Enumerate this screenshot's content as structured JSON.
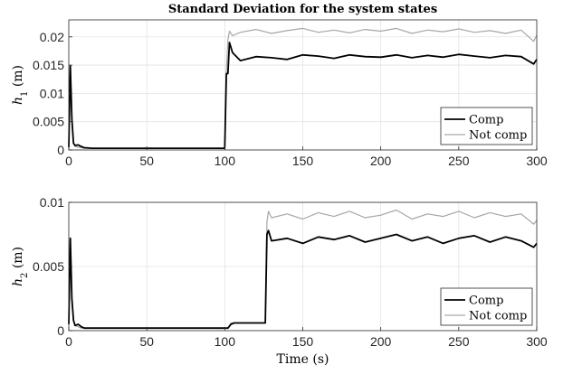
{
  "chart_data": [
    {
      "type": "line",
      "title": "Standard Deviation for the system states",
      "xlabel": "",
      "ylabel": "h_1 (m)",
      "xlim": [
        0,
        300
      ],
      "ylim": [
        0,
        0.023
      ],
      "xticks": [
        0,
        50,
        100,
        150,
        200,
        250,
        300
      ],
      "xtick_labels": [
        "0",
        "50",
        "100",
        "150",
        "200",
        "250",
        "300"
      ],
      "yticks": [
        0,
        0.005,
        0.01,
        0.015,
        0.02
      ],
      "ytick_labels": [
        "0",
        "0.005",
        "0.01",
        "0.015",
        "0.02"
      ],
      "grid": true,
      "legend": "bottom-right",
      "series": [
        {
          "name": "Comp",
          "color": "#000000",
          "x": [
            0,
            1,
            2,
            3,
            4,
            6,
            8,
            10,
            15,
            25,
            50,
            75,
            100,
            101,
            102,
            103,
            105,
            110,
            120,
            130,
            140,
            150,
            160,
            170,
            180,
            190,
            200,
            210,
            220,
            230,
            240,
            250,
            260,
            270,
            280,
            290,
            298,
            300
          ],
          "y": [
            0.0005,
            0.0148,
            0.0055,
            0.0012,
            0.0008,
            0.0009,
            0.0006,
            0.0004,
            0.0003,
            0.0003,
            0.0003,
            0.0003,
            0.0003,
            0.0135,
            0.0135,
            0.019,
            0.0172,
            0.0158,
            0.0165,
            0.0163,
            0.016,
            0.0168,
            0.0166,
            0.0162,
            0.0168,
            0.0165,
            0.0164,
            0.0168,
            0.0163,
            0.0167,
            0.0164,
            0.0169,
            0.0166,
            0.0163,
            0.0167,
            0.0165,
            0.0152,
            0.016
          ]
        },
        {
          "name": "Not comp",
          "color": "#a6a6a6",
          "x": [
            0,
            1,
            2,
            3,
            4,
            6,
            8,
            10,
            15,
            25,
            50,
            75,
            100,
            101,
            102,
            103,
            105,
            110,
            120,
            130,
            140,
            150,
            160,
            170,
            180,
            190,
            200,
            210,
            220,
            230,
            240,
            250,
            260,
            270,
            280,
            290,
            298,
            300
          ],
          "y": [
            0.0005,
            0.0148,
            0.0055,
            0.0012,
            0.0006,
            0.0005,
            0.0004,
            0.0003,
            0.0003,
            0.0003,
            0.0003,
            0.0003,
            0.0003,
            0.014,
            0.0195,
            0.021,
            0.0202,
            0.0208,
            0.0213,
            0.0206,
            0.0211,
            0.0215,
            0.0208,
            0.0212,
            0.0207,
            0.0213,
            0.021,
            0.0215,
            0.0206,
            0.0212,
            0.0209,
            0.0214,
            0.0208,
            0.0211,
            0.0206,
            0.0212,
            0.0192,
            0.0203
          ]
        }
      ]
    },
    {
      "type": "line",
      "title": "",
      "xlabel": "Time (s)",
      "ylabel": "h_2 (m)",
      "xlim": [
        0,
        300
      ],
      "ylim": [
        0,
        0.01
      ],
      "xticks": [
        0,
        50,
        100,
        150,
        200,
        250,
        300
      ],
      "xtick_labels": [
        "0",
        "50",
        "100",
        "150",
        "200",
        "250",
        "300"
      ],
      "yticks": [
        0,
        0.005,
        0.01
      ],
      "ytick_labels": [
        "0",
        "0.005",
        "0.01"
      ],
      "grid": true,
      "legend": "bottom-right",
      "series": [
        {
          "name": "Comp",
          "color": "#000000",
          "x": [
            0,
            1,
            2,
            3,
            4,
            6,
            8,
            10,
            15,
            25,
            50,
            75,
            100,
            102,
            104,
            106,
            110,
            115,
            120,
            125,
            126,
            127,
            128,
            130,
            140,
            150,
            160,
            170,
            180,
            190,
            200,
            210,
            220,
            230,
            240,
            250,
            260,
            270,
            280,
            290,
            298,
            300
          ],
          "y": [
            0.0005,
            0.0072,
            0.0025,
            0.0008,
            0.0004,
            0.0005,
            0.0003,
            0.0002,
            0.0002,
            0.0002,
            0.0002,
            0.0002,
            0.0002,
            0.0002,
            0.0005,
            0.0006,
            0.0006,
            0.0006,
            0.0006,
            0.0006,
            0.0006,
            0.0075,
            0.0078,
            0.007,
            0.0072,
            0.0068,
            0.0073,
            0.0071,
            0.0074,
            0.0069,
            0.0072,
            0.0075,
            0.007,
            0.0073,
            0.0068,
            0.0072,
            0.0074,
            0.0069,
            0.0073,
            0.007,
            0.0065,
            0.0068
          ]
        },
        {
          "name": "Not comp",
          "color": "#a6a6a6",
          "x": [
            0,
            1,
            2,
            3,
            4,
            6,
            8,
            10,
            15,
            25,
            50,
            75,
            100,
            102,
            104,
            106,
            110,
            115,
            120,
            125,
            126,
            127,
            128,
            130,
            140,
            150,
            160,
            170,
            180,
            190,
            200,
            210,
            220,
            230,
            240,
            250,
            260,
            270,
            280,
            290,
            298,
            300
          ],
          "y": [
            0.0005,
            0.0072,
            0.0025,
            0.0008,
            0.0004,
            0.0003,
            0.0002,
            0.0002,
            0.0002,
            0.0002,
            0.0002,
            0.0002,
            0.0002,
            0.0002,
            0.0006,
            0.0006,
            0.0006,
            0.0006,
            0.0006,
            0.0006,
            0.0006,
            0.0085,
            0.0093,
            0.0088,
            0.0091,
            0.0087,
            0.0092,
            0.0089,
            0.0093,
            0.0088,
            0.009,
            0.0094,
            0.0087,
            0.0091,
            0.0089,
            0.0093,
            0.0088,
            0.0092,
            0.0089,
            0.0091,
            0.0083,
            0.0086
          ]
        }
      ]
    }
  ]
}
